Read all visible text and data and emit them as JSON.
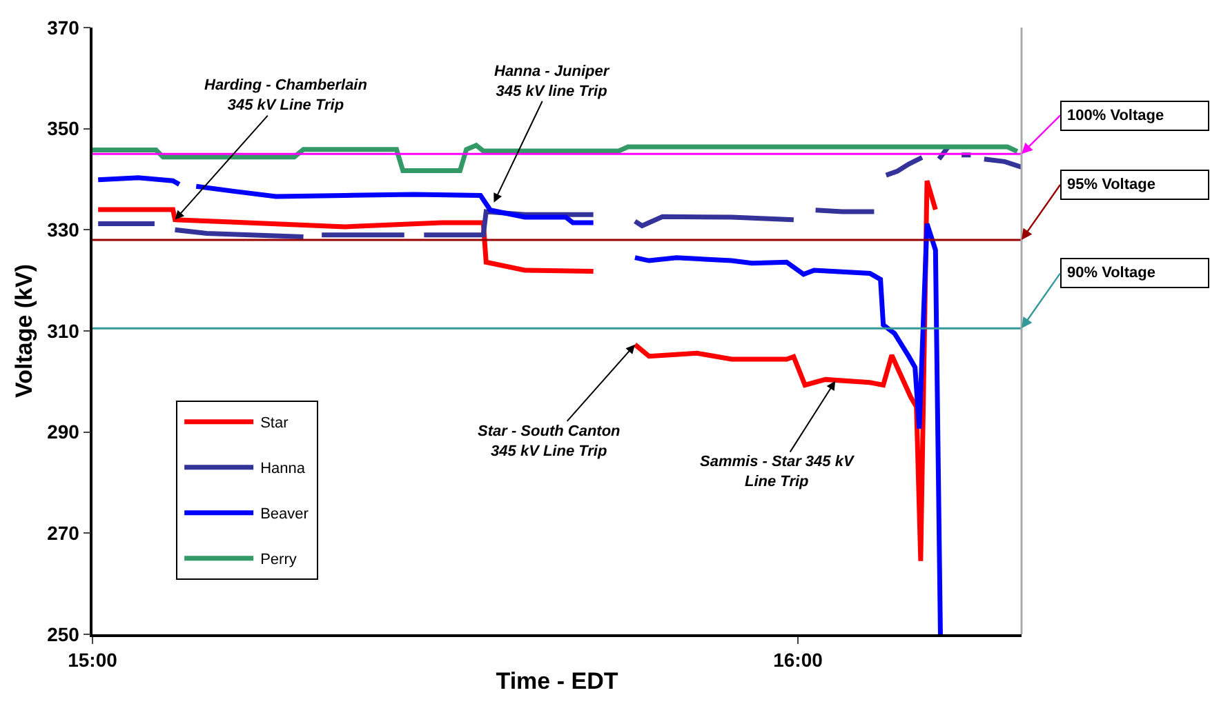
{
  "chart_data": {
    "type": "line",
    "xlabel": "Time - EDT",
    "ylabel": "Voltage (kV)",
    "xlim": [
      15,
      16.317
    ],
    "xticks": [
      {
        "value": 15,
        "label": "15:00"
      },
      {
        "value": 16,
        "label": "16:00"
      }
    ],
    "ylim": [
      250,
      370
    ],
    "yticks": [
      250,
      270,
      290,
      310,
      330,
      350,
      370
    ],
    "legend": "bottom left",
    "line_style": "solid",
    "series": [
      {
        "name": "Star",
        "color": "#ff0000",
        "x": [
          15.008,
          15.114,
          15.117,
          15.202,
          15.358,
          15.495,
          15.554,
          15.558,
          15.613,
          15.71,
          15.74,
          15.769,
          15.789,
          15.857,
          15.906,
          15.984,
          15.994,
          16.01,
          16.039,
          16.102,
          16.121,
          16.133,
          16.16,
          16.168,
          16.174,
          16.183,
          16.195
        ],
        "values": [
          334,
          334,
          332,
          331.5,
          330.6,
          331.4,
          331.4,
          323.6,
          322,
          321.8,
          null,
          307.3,
          305,
          305.6,
          304.4,
          304.4,
          304.9,
          299.3,
          300.4,
          299.8,
          299.3,
          305.2,
          296.9,
          295,
          264.5,
          339.7,
          334
        ]
      },
      {
        "name": "Hanna",
        "color": "#333399",
        "x": [
          15.008,
          15.088,
          15.095,
          15.117,
          15.162,
          15.299,
          15.319,
          15.325,
          15.442,
          15.456,
          15.47,
          15.554,
          15.558,
          15.613,
          15.71,
          15.74,
          15.769,
          15.779,
          15.808,
          15.906,
          15.994,
          16.0,
          16.025,
          16.063,
          16.108,
          16.115,
          16.125,
          16.141,
          16.157,
          16.176,
          16.18,
          16.2,
          16.213,
          16.22,
          16.232,
          16.245,
          16.25,
          16.264,
          16.293,
          16.317
        ],
        "values": [
          331.2,
          331.2,
          null,
          330,
          329.3,
          328.6,
          null,
          329,
          329,
          null,
          329,
          329,
          333.6,
          333,
          333,
          null,
          331.7,
          330.8,
          332.6,
          332.5,
          332,
          null,
          333.9,
          333.6,
          333.6,
          null,
          340.8,
          341.6,
          343,
          344.3,
          null,
          344,
          346.4,
          null,
          344.8,
          344.8,
          null,
          344,
          343.5,
          342.4
        ]
      },
      {
        "name": "Beaver",
        "color": "#0000ff",
        "x": [
          15.008,
          15.065,
          15.114,
          15.123,
          15.135,
          15.147,
          15.202,
          15.26,
          15.358,
          15.456,
          15.55,
          15.564,
          15.613,
          15.671,
          15.681,
          15.71,
          15.74,
          15.769,
          15.789,
          15.828,
          15.906,
          15.935,
          15.984,
          16.008,
          16.023,
          16.102,
          16.117,
          16.121,
          16.137,
          16.157,
          16.166,
          16.172,
          16.183,
          16.195,
          16.202
        ],
        "values": [
          339.9,
          340.3,
          339.7,
          339,
          null,
          338.6,
          337.6,
          336.6,
          336.8,
          337,
          336.8,
          333.9,
          332.5,
          332.5,
          331.4,
          331.4,
          null,
          324.5,
          323.9,
          324.5,
          323.9,
          323.4,
          323.6,
          321.2,
          322,
          321.4,
          320.2,
          311.2,
          309.5,
          305,
          302.8,
          290.7,
          331.2,
          326,
          250
        ]
      },
      {
        "name": "Perry",
        "color": "#339966",
        "x": [
          15.0,
          15.09,
          15.1,
          15.286,
          15.299,
          15.431,
          15.44,
          15.521,
          15.53,
          15.544,
          15.554,
          15.746,
          15.759,
          16.297,
          16.311
        ],
        "values": [
          345.8,
          345.8,
          344.4,
          344.4,
          345.9,
          345.9,
          341.7,
          341.7,
          345.9,
          346.7,
          345.6,
          345.6,
          346.4,
          346.4,
          345.5
        ]
      }
    ],
    "ref_lines": [
      {
        "axis": "y",
        "value": 345,
        "label": "100% Voltage",
        "color": "#ff00ff"
      },
      {
        "axis": "y",
        "value": 328,
        "label": "95% Voltage",
        "color": "#990000"
      },
      {
        "axis": "y",
        "value": 310.5,
        "label": "90% Voltage",
        "color": "#339999"
      }
    ],
    "annotations": [
      {
        "text": "Harding - Chamberlain\n345 kV Line Trip",
        "x": 15.117,
        "y": 332
      },
      {
        "text": "Hanna - Juniper\n345 kV line Trip",
        "x": 15.569,
        "y": 335.4
      },
      {
        "text": "Star - South Canton\n345 kV Line Trip",
        "x": 15.769,
        "y": 307.3
      },
      {
        "text": "Sammis - Star 345 kV\nLine Trip",
        "x": 16.053,
        "y": 300.1
      }
    ]
  }
}
